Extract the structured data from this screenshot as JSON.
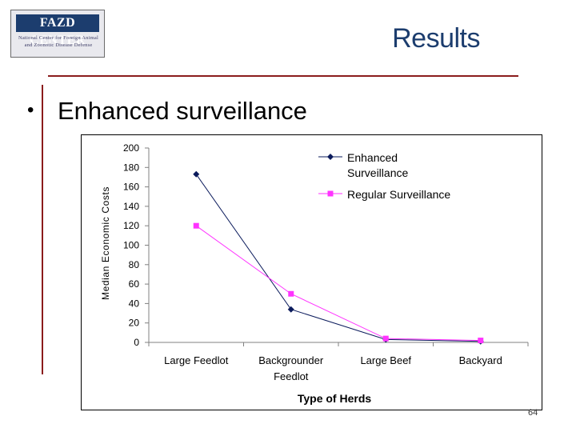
{
  "logo": {
    "name": "FAZD CENTER",
    "line1": "National Center for Foreign Animal",
    "line2": "and Zoonotic Disease Defense"
  },
  "slide": {
    "title": "Results",
    "bullet": "Enhanced surveillance",
    "page_number": "64"
  },
  "colors": {
    "title": "#1c3d6e",
    "rule": "#8b1c1c",
    "enhanced": "#0b1b5c",
    "regular": "#ff33ff"
  },
  "chart_data": {
    "type": "line",
    "categories": [
      "Large Feedlot",
      "Backgrounder Feedlot",
      "Large Beef",
      "Backyard"
    ],
    "category_lines": [
      [
        "Large Feedlot"
      ],
      [
        "Backgrounder",
        "Feedlot"
      ],
      [
        "Large Beef"
      ],
      [
        "Backyard"
      ]
    ],
    "series": [
      {
        "name": "Enhanced Surveillance",
        "name_lines": [
          "Enhanced",
          "Surveillance"
        ],
        "values": [
          173,
          34,
          3,
          1
        ],
        "marker": "diamond",
        "color": "#0b1b5c"
      },
      {
        "name": "Regular Surveillance",
        "name_lines": [
          "Regular Surveillance"
        ],
        "values": [
          120,
          50,
          4,
          2
        ],
        "marker": "square",
        "color": "#ff33ff"
      }
    ],
    "xlabel": "Type of Herds",
    "ylabel": "Median Economic Costs",
    "ylim": [
      0,
      200
    ],
    "yticks": [
      0,
      20,
      40,
      60,
      80,
      100,
      120,
      140,
      160,
      180,
      200
    ],
    "grid": false,
    "legend": "top-right"
  }
}
